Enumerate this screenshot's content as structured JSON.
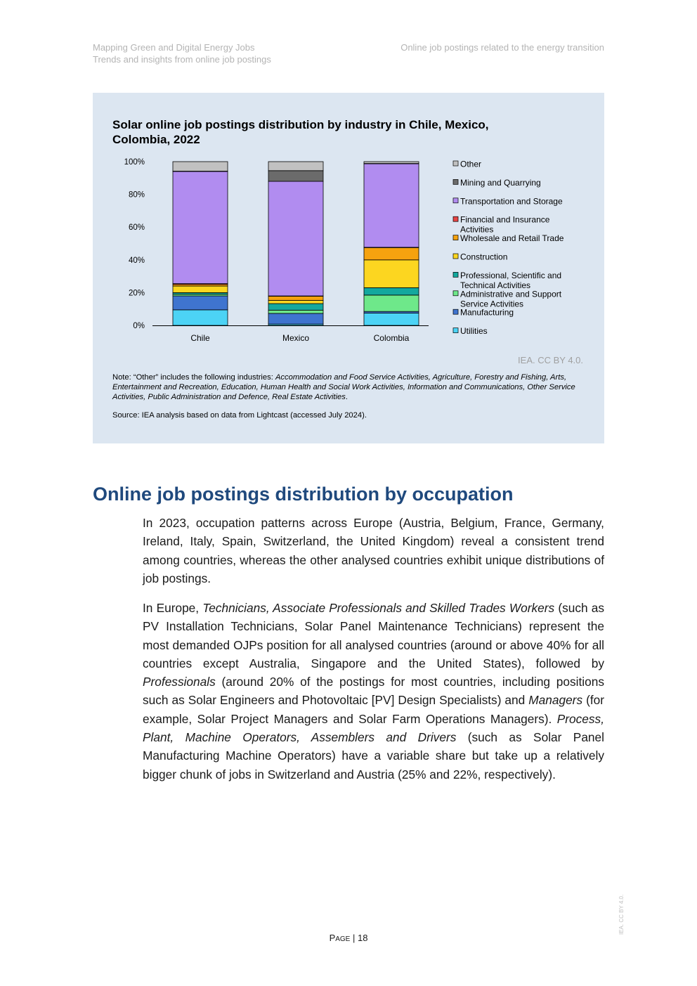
{
  "header": {
    "left_line1": "Mapping Green and Digital Energy Jobs",
    "left_line2": "Trends and insights from online job postings",
    "right": "Online job postings related to the energy transition"
  },
  "figure": {
    "credit": "IEA. CC BY 4.0.",
    "note_intro": "Note: “Other” includes the following industries: ",
    "note_industries": "Accommodation and Food Service Activities, Agriculture, Forestry and Fishing, Arts, Entertainment and Recreation, Education, Human Health and Social Work Activities, Information and Communications, Other Service Activities, Public Administration and Defence, Real Estate Activities",
    "note_end": ".",
    "source": "Source: IEA analysis based on data from Lightcast (accessed July 2024)."
  },
  "chart_data": {
    "type": "bar",
    "stacked": true,
    "title": "Solar online job postings distribution by industry in Chile, Mexico, Colombia, 2022",
    "categories": [
      "Chile",
      "Mexico",
      "Colombia"
    ],
    "ylim": [
      0,
      100
    ],
    "yticks": [
      "0%",
      "20%",
      "40%",
      "60%",
      "80%",
      "100%"
    ],
    "legend_position": "right",
    "series": [
      {
        "name": "Utilities",
        "color": "#4cd3f5",
        "values": [
          9.5,
          0.8,
          7.5
        ]
      },
      {
        "name": "Manufacturing",
        "color": "#3f74cf",
        "values": [
          8.5,
          6.5,
          1.0
        ]
      },
      {
        "name": "Administrative and Support Service Activities",
        "color": "#6ee88a",
        "values": [
          1.0,
          2.0,
          10.0
        ]
      },
      {
        "name": "Professional, Scientific and Technical Activities",
        "color": "#13a89e",
        "values": [
          1.0,
          4.0,
          4.5
        ]
      },
      {
        "name": "Construction",
        "color": "#fcd620",
        "values": [
          4.0,
          2.0,
          17.0
        ]
      },
      {
        "name": "Wholesale and Retail Trade",
        "color": "#f5a20f",
        "values": [
          1.0,
          2.5,
          7.5
        ]
      },
      {
        "name": "Financial and Insurance Activities",
        "color": "#e64545",
        "values": [
          0.5,
          0.2,
          0.2
        ]
      },
      {
        "name": "Transportation and Storage",
        "color": "#b18cf0",
        "values": [
          68.5,
          70.0,
          51.0
        ]
      },
      {
        "name": "Mining and Quarrying",
        "color": "#6b6b6b",
        "values": [
          0.2,
          6.5,
          0.2
        ]
      },
      {
        "name": "Other",
        "color": "#c1c1c1",
        "values": [
          5.8,
          5.5,
          1.1
        ]
      }
    ]
  },
  "legend_labels": [
    {
      "name": "Other",
      "lines": [
        "Other"
      ]
    },
    {
      "name": "Mining and Quarrying",
      "lines": [
        "Mining and Quarrying"
      ]
    },
    {
      "name": "Transportation and Storage",
      "lines": [
        "Transportation and Storage"
      ]
    },
    {
      "name": "Financial and Insurance Activities",
      "lines": [
        "Financial and Insurance",
        "Activities"
      ]
    },
    {
      "name": "Wholesale and Retail Trade",
      "lines": [
        "Wholesale and Retail Trade"
      ]
    },
    {
      "name": "Construction",
      "lines": [
        "Construction"
      ]
    },
    {
      "name": "Professional, Scientific and Technical Activities",
      "lines": [
        "Professional, Scientific and",
        "Technical Activities"
      ]
    },
    {
      "name": "Administrative and Support Service Activities",
      "lines": [
        "Administrative and Support",
        "Service Activities"
      ]
    },
    {
      "name": "Manufacturing",
      "lines": [
        "Manufacturing"
      ]
    },
    {
      "name": "Utilities",
      "lines": [
        "Utilities"
      ]
    }
  ],
  "section": {
    "heading": "Online job postings distribution by occupation",
    "para1": "In 2023, occupation patterns across Europe (Austria, Belgium, France, Germany, Ireland, Italy, Spain, Switzerland, the United Kingdom) reveal a consistent trend among countries, whereas the other analysed countries exhibit unique distributions of job postings.",
    "p2_a": "In Europe, ",
    "p2_b": "Technicians, Associate Professionals and Skilled Trades Workers",
    "p2_c": " (such as PV Installation Technicians, Solar Panel Maintenance Technicians) represent the most demanded OJPs position for all analysed countries (around or above 40% for all countries except Australia, Singapore and the United States), followed by ",
    "p2_d": "Professionals",
    "p2_e": " (around 20% of the postings for most countries, including positions such as Solar Engineers and Photovoltaic [PV] Design Specialists) and ",
    "p2_f": "Managers",
    "p2_g": " (for example, Solar Project Managers and Solar Farm Operations Managers). ",
    "p2_h": "Process, Plant, Machine Operators, Assemblers and Drivers",
    "p2_i": " (such as Solar Panel Manufacturing Machine Operators) have a variable share but take up a relatively bigger chunk of jobs in Switzerland and Austria (25% and 22%, respectively)."
  },
  "footer": {
    "page_label": "Page",
    "separator": " | ",
    "page_number": "18",
    "side_credit": "IEA. CC BY 4.0."
  }
}
